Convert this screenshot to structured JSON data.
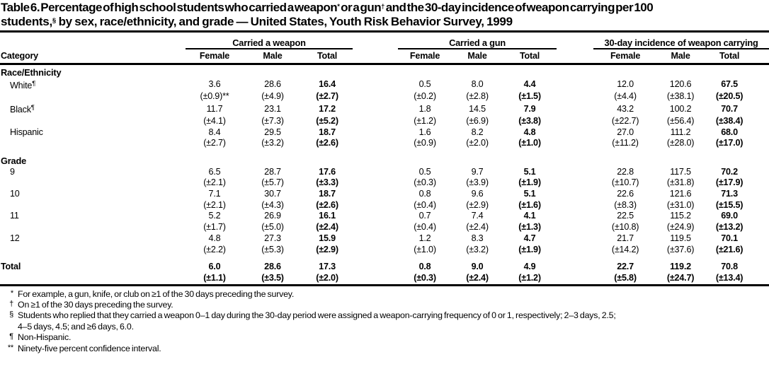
{
  "title": {
    "lines": [
      [
        {
          "t": "Table 6. Percentage of high school students who carried a weapon"
        },
        {
          "t": "*",
          "sup": true
        },
        {
          "t": " or a gun"
        },
        {
          "t": "†",
          "sup": true
        },
        {
          "t": " and the 30-day incidence of weapon carrying per 100"
        }
      ],
      [
        {
          "t": "students,"
        },
        {
          "t": "§",
          "sup": true
        },
        {
          "t": " by sex, race/ethnicity, and grade — United States, Youth Risk Behavior Survey, 1999"
        }
      ]
    ]
  },
  "header": {
    "category_label": "Category",
    "groups": [
      {
        "label": "Carried a weapon",
        "columns": [
          "Female",
          "Male",
          "Total"
        ]
      },
      {
        "label": "Carried a gun",
        "columns": [
          "Female",
          "Male",
          "Total"
        ]
      },
      {
        "label": "30-day incidence of weapon carrying",
        "columns": [
          "Female",
          "Male",
          "Total"
        ]
      }
    ]
  },
  "sections": [
    {
      "heading": "Race/Ethnicity",
      "rows": [
        {
          "label": "White",
          "marker": "¶",
          "indent": true,
          "values": [
            "3.6",
            "28.6",
            "16.4",
            "0.5",
            "8.0",
            "4.4",
            "12.0",
            "120.6",
            "67.5"
          ],
          "ci": [
            "(±0.9)**",
            "(±4.9)",
            "(±2.7)",
            "(±0.2)",
            "(±2.8)",
            "(±1.5)",
            "(±4.4)",
            "(±38.1)",
            "(±20.5)"
          ]
        },
        {
          "label": "Black",
          "marker": "¶",
          "indent": true,
          "values": [
            "11.7",
            "23.1",
            "17.2",
            "1.8",
            "14.5",
            "7.9",
            "43.2",
            "100.2",
            "70.7"
          ],
          "ci": [
            "(±4.1)",
            "(±7.3)",
            "(±5.2)",
            "(±1.2)",
            "(±6.9)",
            "(±3.8)",
            "(±22.7)",
            "(±56.4)",
            "(±38.4)"
          ]
        },
        {
          "label": "Hispanic",
          "indent": true,
          "values": [
            "8.4",
            "29.5",
            "18.7",
            "1.6",
            "8.2",
            "4.8",
            "27.0",
            "111.2",
            "68.0"
          ],
          "ci": [
            "(±2.7)",
            "(±3.2)",
            "(±2.6)",
            "(±0.9)",
            "(±2.0)",
            "(±1.0)",
            "(±11.2)",
            "(±28.0)",
            "(±17.0)"
          ]
        }
      ]
    },
    {
      "heading": "Grade",
      "rows": [
        {
          "label": "9",
          "indent": true,
          "values": [
            "6.5",
            "28.7",
            "17.6",
            "0.5",
            "9.7",
            "5.1",
            "22.8",
            "117.5",
            "70.2"
          ],
          "ci": [
            "(±2.1)",
            "(±5.7)",
            "(±3.3)",
            "(±0.3)",
            "(±3.9)",
            "(±1.9)",
            "(±10.7)",
            "(±31.8)",
            "(±17.9)"
          ]
        },
        {
          "label": "10",
          "indent": true,
          "values": [
            "7.1",
            "30.7",
            "18.7",
            "0.8",
            "9.6",
            "5.1",
            "22.6",
            "121.6",
            "71.3"
          ],
          "ci": [
            "(±2.1)",
            "(±4.3)",
            "(±2.6)",
            "(±0.4)",
            "(±2.9)",
            "(±1.6)",
            "(±8.3)",
            "(±31.0)",
            "(±15.5)"
          ]
        },
        {
          "label": "11",
          "indent": true,
          "values": [
            "5.2",
            "26.9",
            "16.1",
            "0.7",
            "7.4",
            "4.1",
            "22.5",
            "115.2",
            "69.0"
          ],
          "ci": [
            "(±1.7)",
            "(±5.0)",
            "(±2.4)",
            "(±0.4)",
            "(±2.4)",
            "(±1.3)",
            "(±10.8)",
            "(±24.9)",
            "(±13.2)"
          ]
        },
        {
          "label": "12",
          "indent": true,
          "values": [
            "4.8",
            "27.3",
            "15.9",
            "1.2",
            "8.3",
            "4.7",
            "21.7",
            "119.5",
            "70.1"
          ],
          "ci": [
            "(±2.2)",
            "(±5.3)",
            "(±2.9)",
            "(±1.0)",
            "(±3.2)",
            "(±1.9)",
            "(±14.2)",
            "(±37.6)",
            "(±21.6)"
          ]
        }
      ]
    },
    {
      "heading": null,
      "rows": [
        {
          "label": "Total",
          "bold": true,
          "gap": true,
          "values": [
            "6.0",
            "28.6",
            "17.3",
            "0.8",
            "9.0",
            "4.9",
            "22.7",
            "119.2",
            "70.8"
          ],
          "ci": [
            "(±1.1)",
            "(±3.5)",
            "(±2.0)",
            "(±0.3)",
            "(±2.4)",
            "(±1.2)",
            "(±5.8)",
            "(±24.7)",
            "(±13.4)"
          ]
        }
      ]
    }
  ],
  "footnotes": [
    {
      "marker": "*",
      "lines": [
        "For example, a gun, knife, or club on ≥1 of the 30 days preceding the survey."
      ]
    },
    {
      "marker": "†",
      "lines": [
        "On ≥1 of the 30 days preceding the survey."
      ]
    },
    {
      "marker": "§",
      "lines": [
        "Students who replied that they carried a weapon 0–1 day during the 30-day period were assigned a weapon-carrying frequency of 0 or 1, respectively; 2–3 days, 2.5;",
        "4–5 days, 4.5; and ≥6 days, 6.0."
      ]
    },
    {
      "marker": "¶",
      "lines": [
        "Non-Hispanic."
      ]
    },
    {
      "marker": "**",
      "lines": [
        "Ninety-five percent confidence interval."
      ]
    }
  ]
}
